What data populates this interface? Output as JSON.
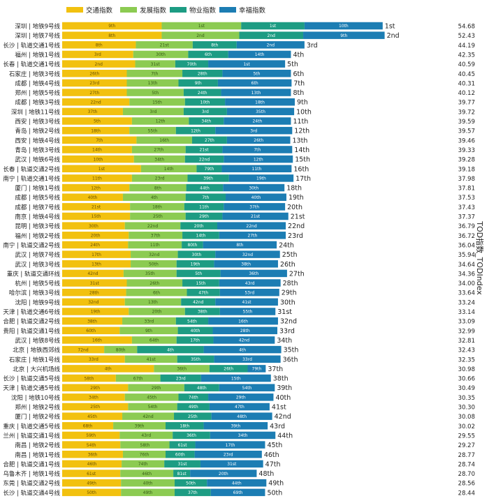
{
  "chart_data": {
    "type": "bar",
    "orientation": "horizontal",
    "stacked": true,
    "ylabel_right": "TOD指数_TODIndex",
    "legend_position": "top-left",
    "series": [
      {
        "name": "交通指数",
        "color": "#f2c10f"
      },
      {
        "name": "发展指数",
        "color": "#8ccb52"
      },
      {
        "name": "物业指数",
        "color": "#1d9c83"
      },
      {
        "name": "幸福指数",
        "color": "#1c7db3"
      }
    ],
    "rows": [
      {
        "label": "深圳 | 地铁9号线",
        "ranks": [
          "9th",
          "1st",
          "1st",
          "10th"
        ],
        "values": [
          15.4,
          12.3,
          9.8,
          12.1
        ],
        "rank": "1st",
        "total": "54.68"
      },
      {
        "label": "深圳 | 地铁7号线",
        "ranks": [
          "8th",
          "2nd",
          "2nd",
          "9th"
        ],
        "values": [
          15.4,
          12.0,
          9.9,
          12.6
        ],
        "rank": "2nd",
        "total": "52.43"
      },
      {
        "label": "长沙 | 轨道交通1号线",
        "ranks": [
          "8th",
          "21st",
          "8th",
          "2nd"
        ],
        "values": [
          11.4,
          8.8,
          6.8,
          10.5
        ],
        "rank": "3rd",
        "total": "44.19"
      },
      {
        "label": "福州 | 地铁1号线",
        "ranks": [
          "3rd",
          "30th",
          "6th",
          "14th"
        ],
        "values": [
          11.0,
          8.5,
          6.2,
          9.7
        ],
        "rank": "4th",
        "total": "42.35"
      },
      {
        "label": "长春 | 轨道交通1号线",
        "ranks": [
          "2nd",
          "31st",
          "70th",
          "1st"
        ],
        "values": [
          11.3,
          6.2,
          5.1,
          11.9
        ],
        "rank": "5th",
        "total": "40.59"
      },
      {
        "label": "石家庄 | 地铁3号线",
        "ranks": [
          "26th",
          "7th",
          "28th",
          "5th"
        ],
        "values": [
          10.0,
          8.6,
          6.2,
          10.6
        ],
        "rank": "6th",
        "total": "40.45"
      },
      {
        "label": "成都 | 地铁4号线",
        "ranks": [
          "23rd",
          "13th",
          "9th",
          "6th"
        ],
        "values": [
          10.0,
          8.0,
          6.1,
          11.4
        ],
        "rank": "7th",
        "total": "40.31"
      },
      {
        "label": "郑州 | 地铁5号线",
        "ranks": [
          "27th",
          "5th",
          "24th",
          "13th"
        ],
        "values": [
          10.0,
          8.8,
          5.8,
          10.8
        ],
        "rank": "8th",
        "total": "40.12"
      },
      {
        "label": "成都 | 地铁3号线",
        "ranks": [
          "22nd",
          "15th",
          "10th",
          "18th"
        ],
        "values": [
          10.4,
          8.6,
          6.2,
          10.8
        ],
        "rank": "9th",
        "total": "39.77"
      },
      {
        "label": "深圳 | 地铁11号线",
        "ranks": [
          "37th",
          "3rd",
          "3rd",
          "35th"
        ],
        "values": [
          9.4,
          9.4,
          6.7,
          10.4
        ],
        "rank": "10th",
        "total": "39.72"
      },
      {
        "label": "西安 | 地铁3号线",
        "ranks": [
          "5th",
          "12th",
          "34th",
          "24th"
        ],
        "values": [
          10.8,
          8.8,
          5.4,
          10.4
        ],
        "rank": "11th",
        "total": "39.59"
      },
      {
        "label": "青岛 | 地铁2号线",
        "ranks": [
          "18th",
          "55th",
          "12th",
          "3rd"
        ],
        "values": [
          10.4,
          7.2,
          6.1,
          11.9
        ],
        "rank": "12th",
        "total": "39.57"
      },
      {
        "label": "西安 | 地铁4号线",
        "ranks": [
          "7th",
          "16th",
          "27th",
          "26th"
        ],
        "values": [
          11.5,
          8.6,
          5.4,
          9.8
        ],
        "rank": "13th",
        "total": "39.46"
      },
      {
        "label": "青岛 | 地铁3号线",
        "ranks": [
          "14th",
          "27th",
          "21st",
          "7th"
        ],
        "values": [
          10.8,
          8.3,
          5.7,
          10.8
        ],
        "rank": "14th",
        "total": "39.33"
      },
      {
        "label": "武汉 | 地铁6号线",
        "ranks": [
          "10th",
          "34th",
          "22nd",
          "12th"
        ],
        "values": [
          11.1,
          7.9,
          6.0,
          10.7
        ],
        "rank": "15th",
        "total": "39.28"
      },
      {
        "label": "长春 | 轨道交通2号线",
        "ranks": [
          "1st",
          "14th",
          "79th",
          "11th"
        ],
        "values": [
          12.2,
          8.6,
          3.9,
          10.8
        ],
        "rank": "16th",
        "total": "39.18"
      },
      {
        "label": "南宁 | 轨道交通1号线",
        "ranks": [
          "11th",
          "23rd",
          "39th",
          "19th"
        ],
        "values": [
          10.8,
          8.6,
          6.4,
          10.0
        ],
        "rank": "17th",
        "total": "37.98"
      },
      {
        "label": "厦门 | 地铁1号线",
        "ranks": [
          "12th",
          "8th",
          "44th",
          "30th"
        ],
        "values": [
          10.4,
          8.8,
          5.7,
          9.5
        ],
        "rank": "18th",
        "total": "37.81"
      },
      {
        "label": "成都 | 地铁5号线",
        "ranks": [
          "40th",
          "4th",
          "7th",
          "40th"
        ],
        "values": [
          9.4,
          9.7,
          6.2,
          9.4
        ],
        "rank": "19th",
        "total": "37.53"
      },
      {
        "label": "成都 | 地铁7号线",
        "ranks": [
          "21st",
          "18th",
          "11th",
          "37th"
        ],
        "values": [
          10.5,
          8.4,
          6.1,
          9.5
        ],
        "rank": "20th",
        "total": "37.43"
      },
      {
        "label": "南京 | 地铁4号线",
        "ranks": [
          "15th",
          "25th",
          "29th",
          "21st"
        ],
        "values": [
          10.5,
          8.6,
          5.7,
          10.2
        ],
        "rank": "21st",
        "total": "37.37"
      },
      {
        "label": "昆明 | 地铁3号线",
        "ranks": [
          "30th",
          "22nd",
          "20th",
          "22nd"
        ],
        "values": [
          9.7,
          8.6,
          5.7,
          10.6
        ],
        "rank": "22nd",
        "total": "36.79"
      },
      {
        "label": "福州 | 地铁2号线",
        "ranks": [
          "20th",
          "37th",
          "14th",
          "27th"
        ],
        "values": [
          10.3,
          8.3,
          5.7,
          10.3
        ],
        "rank": "23rd",
        "total": "36.72"
      },
      {
        "label": "南宁 | 轨道交通2号线",
        "ranks": [
          "24th",
          "11th",
          "80th",
          "8th"
        ],
        "values": [
          10.2,
          8.3,
          3.3,
          11.4
        ],
        "rank": "24th",
        "total": "36.04"
      },
      {
        "label": "武汉 | 地铁7号线",
        "ranks": [
          "17th",
          "32nd",
          "30th",
          "32nd"
        ],
        "values": [
          10.6,
          7.3,
          5.8,
          10.0
        ],
        "rank": "25th",
        "total": "35.94"
      },
      {
        "label": "武汉 | 地铁3号线",
        "ranks": [
          "13th",
          "50th",
          "19th",
          "38th"
        ],
        "values": [
          10.6,
          7.1,
          5.8,
          9.9
        ],
        "rank": "26th",
        "total": "34.64"
      },
      {
        "label": "重庆 | 轨道交通环线",
        "ranks": [
          "42nd",
          "35th",
          "5th",
          "36th"
        ],
        "values": [
          9.5,
          8.2,
          6.8,
          10.3
        ],
        "rank": "27th",
        "total": "34.36"
      },
      {
        "label": "杭州 | 地铁5号线",
        "ranks": [
          "31st",
          "26th",
          "15th",
          "43rd"
        ],
        "values": [
          10.0,
          8.6,
          5.7,
          9.5
        ],
        "rank": "28th",
        "total": "34.00"
      },
      {
        "label": "哈尔滨 | 地铁3号线",
        "ranks": [
          "28th",
          "6th",
          "47th",
          "53rd"
        ],
        "values": [
          9.9,
          9.4,
          5.1,
          9.2
        ],
        "rank": "29th",
        "total": "33.64"
      },
      {
        "label": "沈阳 | 地铁9号线",
        "ranks": [
          "32nd",
          "13th",
          "42nd",
          "41st"
        ],
        "values": [
          9.7,
          8.7,
          5.3,
          9.7
        ],
        "rank": "30th",
        "total": "33.24"
      },
      {
        "label": "天津 | 轨道交通6号线",
        "ranks": [
          "19th",
          "20th",
          "38th",
          "55th"
        ],
        "values": [
          10.3,
          8.7,
          5.4,
          8.6
        ],
        "rank": "31st",
        "total": "33.14"
      },
      {
        "label": "合肥 | 轨道交通2号线",
        "ranks": [
          "38th",
          "33rd",
          "54th",
          "16th"
        ],
        "values": [
          9.3,
          8.3,
          5.0,
          10.8
        ],
        "rank": "32nd",
        "total": "33.09"
      },
      {
        "label": "贵阳 | 轨道交通1号线",
        "ranks": [
          "60th",
          "9th",
          "40th",
          "28th"
        ],
        "values": [
          8.9,
          9.0,
          5.4,
          10.0
        ],
        "rank": "33rd",
        "total": "32.99"
      },
      {
        "label": "武汉 | 地铁8号线",
        "ranks": [
          "16th",
          "64th",
          "17th",
          "42nd"
        ],
        "values": [
          10.8,
          6.9,
          5.7,
          9.5
        ],
        "rank": "34th",
        "total": "32.81"
      },
      {
        "label": "北京 | 地铁西郊线",
        "ranks": [
          "72nd",
          "80th",
          "4th",
          "4th"
        ],
        "values": [
          6.5,
          5.1,
          10.3,
          12.0
        ],
        "rank": "35th",
        "total": "32.43"
      },
      {
        "label": "石家庄 | 地铁1号线",
        "ranks": [
          "33rd",
          "41st",
          "35th",
          "33rd"
        ],
        "values": [
          9.7,
          8.1,
          5.7,
          10.3
        ],
        "rank": "36th",
        "total": "32.35"
      },
      {
        "label": "北京 | 大兴机场线",
        "ranks": [
          "4th",
          "36th",
          "26th",
          "79th"
        ],
        "values": [
          14.2,
          8.6,
          5.9,
          2.8
        ],
        "rank": "37th",
        "total": "30.98"
      },
      {
        "label": "长沙 | 轨道交通5号线",
        "ranks": [
          "58th",
          "67th",
          "23rd",
          "15th"
        ],
        "values": [
          8.3,
          6.9,
          6.3,
          10.8
        ],
        "rank": "38th",
        "total": "30.66"
      },
      {
        "label": "天津 | 轨道交通5号线",
        "ranks": [
          "29th",
          "29th",
          "48th",
          "54th"
        ],
        "values": [
          10.2,
          8.7,
          5.4,
          8.6
        ],
        "rank": "39th",
        "total": "30.49"
      },
      {
        "label": "沈阳 | 地铁10号线",
        "ranks": [
          "34th",
          "45th",
          "74th",
          "29th"
        ],
        "values": [
          9.7,
          8.3,
          4.6,
          10.1
        ],
        "rank": "40th",
        "total": "30.35"
      },
      {
        "label": "郑州 | 地铁2号线",
        "ranks": [
          "25th",
          "54th",
          "49th",
          "47th"
        ],
        "values": [
          10.2,
          7.6,
          5.0,
          9.3
        ],
        "rank": "41st",
        "total": "30.30"
      },
      {
        "label": "厦门 | 地铁2号线",
        "ranks": [
          "45th",
          "42nd",
          "25th",
          "48th"
        ],
        "values": [
          9.3,
          8.0,
          5.8,
          9.4
        ],
        "rank": "42nd",
        "total": "30.08"
      },
      {
        "label": "重庆 | 轨道交通5号线",
        "ranks": [
          "68th",
          "39th",
          "18th",
          "39th"
        ],
        "values": [
          7.9,
          8.1,
          5.9,
          9.9
        ],
        "rank": "43rd",
        "total": "30.02"
      },
      {
        "label": "兰州 | 轨道交通1号线",
        "ranks": [
          "59th",
          "43rd",
          "36th",
          "34th"
        ],
        "values": [
          8.9,
          8.2,
          5.8,
          10.1
        ],
        "rank": "44th",
        "total": "29.55"
      },
      {
        "label": "南昌 | 地铁2号线",
        "ranks": [
          "54th",
          "58th",
          "61st",
          "17th"
        ],
        "values": [
          9.0,
          7.6,
          4.0,
          10.8
        ],
        "rank": "45th",
        "total": "29.27"
      },
      {
        "label": "南昌 | 地铁1号线",
        "ranks": [
          "36th",
          "76th",
          "60th",
          "23rd"
        ],
        "values": [
          9.4,
          6.6,
          4.5,
          10.4
        ],
        "rank": "46th",
        "total": "28.77"
      },
      {
        "label": "合肥 | 轨道交通1号线",
        "ranks": [
          "46th",
          "74th",
          "31st",
          "31st"
        ],
        "values": [
          9.2,
          6.6,
          5.6,
          9.7
        ],
        "rank": "47th",
        "total": "28.74"
      },
      {
        "label": "乌鲁木齐 | 地铁1号线",
        "ranks": [
          "61st",
          "46th",
          "81st",
          "20th"
        ],
        "values": [
          9.0,
          8.2,
          2.6,
          10.3
        ],
        "rank": "48th",
        "total": "28.70"
      },
      {
        "label": "东莞 | 轨道交通2号线",
        "ranks": [
          "49th",
          "40th",
          "50th",
          "44th"
        ],
        "values": [
          9.1,
          8.3,
          5.0,
          9.2
        ],
        "rank": "49th",
        "total": "28.56"
      },
      {
        "label": "长沙 | 轨道交通4号线",
        "ranks": [
          "50th",
          "49th",
          "37th",
          "69th"
        ],
        "values": [
          9.1,
          8.3,
          5.6,
          8.4
        ],
        "rank": "50th",
        "total": "28.44"
      }
    ]
  }
}
